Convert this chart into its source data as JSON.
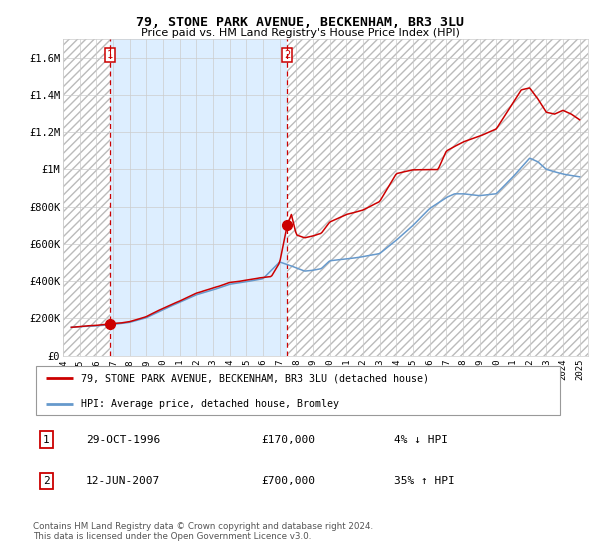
{
  "title": "79, STONE PARK AVENUE, BECKENHAM, BR3 3LU",
  "subtitle": "Price paid vs. HM Land Registry's House Price Index (HPI)",
  "legend_line1": "79, STONE PARK AVENUE, BECKENHAM, BR3 3LU (detached house)",
  "legend_line2": "HPI: Average price, detached house, Bromley",
  "transaction1_date": "29-OCT-1996",
  "transaction1_price": 170000,
  "transaction1_pct": "4% ↓ HPI",
  "transaction2_date": "12-JUN-2007",
  "transaction2_price": 700000,
  "transaction2_pct": "35% ↑ HPI",
  "footer": "Contains HM Land Registry data © Crown copyright and database right 2024.\nThis data is licensed under the Open Government Licence v3.0.",
  "red_color": "#cc0000",
  "blue_color": "#6699cc",
  "bg_shade_color": "#ddeeff",
  "grid_color": "#cccccc",
  "ylim": [
    0,
    1700000
  ],
  "yticks": [
    0,
    200000,
    400000,
    600000,
    800000,
    1000000,
    1200000,
    1400000,
    1600000
  ],
  "ytick_labels": [
    "£0",
    "£200K",
    "£400K",
    "£600K",
    "£800K",
    "£1M",
    "£1.2M",
    "£1.4M",
    "£1.6M"
  ],
  "transaction1_x": 1996.83,
  "transaction2_x": 2007.45,
  "xmin": 1994.0,
  "xmax": 2025.5
}
